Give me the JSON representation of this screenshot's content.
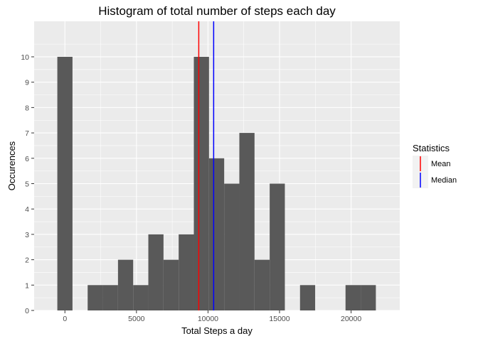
{
  "chart_data": {
    "type": "bar",
    "title": "Histogram of total number of steps each day",
    "xlabel": "Total Steps a day",
    "ylabel": "Occurences",
    "xlim": [
      -2150,
      23400
    ],
    "ylim": [
      0,
      11.4
    ],
    "x_ticks": [
      0,
      5000,
      10000,
      15000,
      20000
    ],
    "y_ticks": [
      0,
      1,
      2,
      3,
      4,
      5,
      6,
      7,
      8,
      9,
      10
    ],
    "bin_width": 1060,
    "bins": [
      {
        "x": 0,
        "count": 10
      },
      {
        "x": 1060,
        "count": 0
      },
      {
        "x": 2120,
        "count": 1
      },
      {
        "x": 3180,
        "count": 1
      },
      {
        "x": 4240,
        "count": 2
      },
      {
        "x": 5300,
        "count": 1
      },
      {
        "x": 6360,
        "count": 3
      },
      {
        "x": 7420,
        "count": 2
      },
      {
        "x": 8480,
        "count": 3
      },
      {
        "x": 9540,
        "count": 10
      },
      {
        "x": 10600,
        "count": 6
      },
      {
        "x": 11660,
        "count": 5
      },
      {
        "x": 12720,
        "count": 7
      },
      {
        "x": 13780,
        "count": 2
      },
      {
        "x": 14840,
        "count": 5
      },
      {
        "x": 15900,
        "count": 0
      },
      {
        "x": 16960,
        "count": 1
      },
      {
        "x": 18020,
        "count": 0
      },
      {
        "x": 19080,
        "count": 0
      },
      {
        "x": 20140,
        "count": 1
      },
      {
        "x": 21200,
        "count": 1
      }
    ],
    "bar_color": "#595959",
    "vlines": [
      {
        "name": "Mean",
        "value": 9354,
        "color": "#ff0000"
      },
      {
        "name": "Median",
        "value": 10395,
        "color": "#0000ff"
      }
    ],
    "legend": {
      "title": "Statistics",
      "position": "right",
      "entries": [
        "Mean",
        "Median"
      ]
    },
    "grid": true,
    "panel_background": "#ebebeb"
  }
}
